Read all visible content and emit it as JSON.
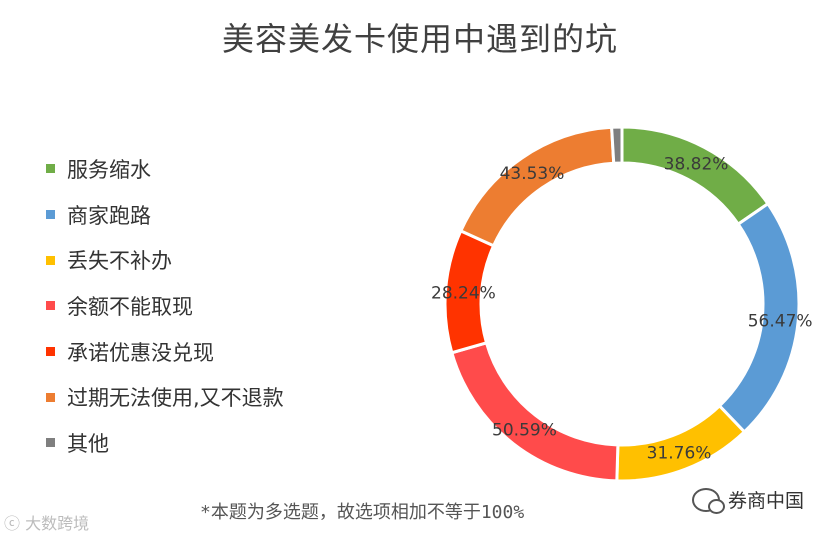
{
  "title": "美容美发卡使用中遇到的坑",
  "footnote": "*本题为多选题，故选项相加不等于100%",
  "watermark_left": "大数跨境",
  "brand": "券商中国",
  "legend_items": [
    {
      "label": "服务缩水",
      "color": "#70AD47"
    },
    {
      "label": "商家跑路",
      "color": "#5B9BD5"
    },
    {
      "label": "丢失不补办",
      "color": "#FFC000"
    },
    {
      "label": "余额不能取现",
      "color": "#FF4B4B"
    },
    {
      "label": "承诺优惠没兑现",
      "color": "#FF3300"
    },
    {
      "label": "过期无法使用,又不退款",
      "color": "#ED7D31"
    },
    {
      "label": "其他",
      "color": "#7F7F7F"
    }
  ],
  "chart_data": {
    "type": "pie",
    "donut": true,
    "title": "美容美发卡使用中遇到的坑",
    "categories": [
      "服务缩水",
      "商家跑路",
      "丢失不补办",
      "余额不能取现",
      "承诺优惠没兑现",
      "过期无法使用,又不退款",
      "其他"
    ],
    "values": [
      38.82,
      56.47,
      31.76,
      50.59,
      28.24,
      43.53,
      2.35
    ],
    "data_labels": [
      "38.82%",
      "56.47%",
      "31.76%",
      "50.59%",
      "28.24%",
      "43.53%",
      ""
    ],
    "colors": [
      "#70AD47",
      "#5B9BD5",
      "#FFC000",
      "#FF4B4B",
      "#FF3300",
      "#ED7D31",
      "#7F7F7F"
    ],
    "legend_position": "left"
  }
}
